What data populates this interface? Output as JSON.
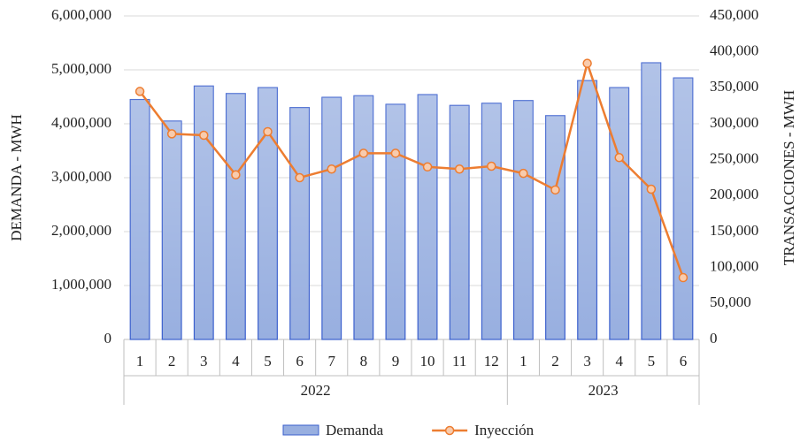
{
  "chart_data": {
    "type": "bar-line",
    "y_label": "DEMANDA - MWH",
    "y2_label": "TRANSACCIONES - MWH",
    "groups": [
      {
        "label": "2022",
        "categories": [
          "1",
          "2",
          "3",
          "4",
          "5",
          "6",
          "7",
          "8",
          "9",
          "10",
          "11",
          "12"
        ]
      },
      {
        "label": "2023",
        "categories": [
          "1",
          "2",
          "3",
          "4",
          "5",
          "6"
        ]
      }
    ],
    "series": [
      {
        "name": "Demanda",
        "type": "bar",
        "color": "#98afe0",
        "axis": "y",
        "values": [
          4450000,
          4050000,
          4700000,
          4560000,
          4670000,
          4300000,
          4490000,
          4520000,
          4360000,
          4540000,
          4340000,
          4380000,
          4430000,
          4150000,
          4800000,
          4670000,
          5130000,
          4850000
        ]
      },
      {
        "name": "Inyección",
        "type": "line",
        "color": "#ed7d31",
        "axis": "y2",
        "values": [
          345000,
          286000,
          284000,
          229000,
          289000,
          225000,
          237000,
          259000,
          259000,
          240000,
          237000,
          241000,
          231000,
          208000,
          384000,
          253000,
          209000,
          86000
        ]
      }
    ],
    "ylim": [
      0,
      6000000
    ],
    "yticks": [
      0,
      {
        "value": 1000000,
        "label": "1,000,000"
      },
      {
        "value": 2000000,
        "label": "2,000,000"
      },
      {
        "value": 3000000,
        "label": "3,000,000"
      },
      {
        "value": 4000000,
        "label": "4,000,000"
      },
      {
        "value": 5000000,
        "label": "5,000,000"
      },
      {
        "value": 6000000,
        "label": "6,000,000"
      }
    ],
    "y2lim": [
      0,
      450000
    ],
    "y2ticks": [
      0,
      {
        "value": 50000,
        "label": "50,000"
      },
      {
        "value": 100000,
        "label": "100,000"
      },
      {
        "value": 150000,
        "label": "150,000"
      },
      {
        "value": 200000,
        "label": "200,000"
      },
      {
        "value": 250000,
        "label": "250,000"
      },
      {
        "value": 300000,
        "label": "300,000"
      },
      {
        "value": 350000,
        "label": "350,000"
      },
      {
        "value": 400000,
        "label": "400,000"
      },
      {
        "value": 450000,
        "label": "450,000"
      }
    ],
    "grid": true,
    "legend": "bottom"
  }
}
